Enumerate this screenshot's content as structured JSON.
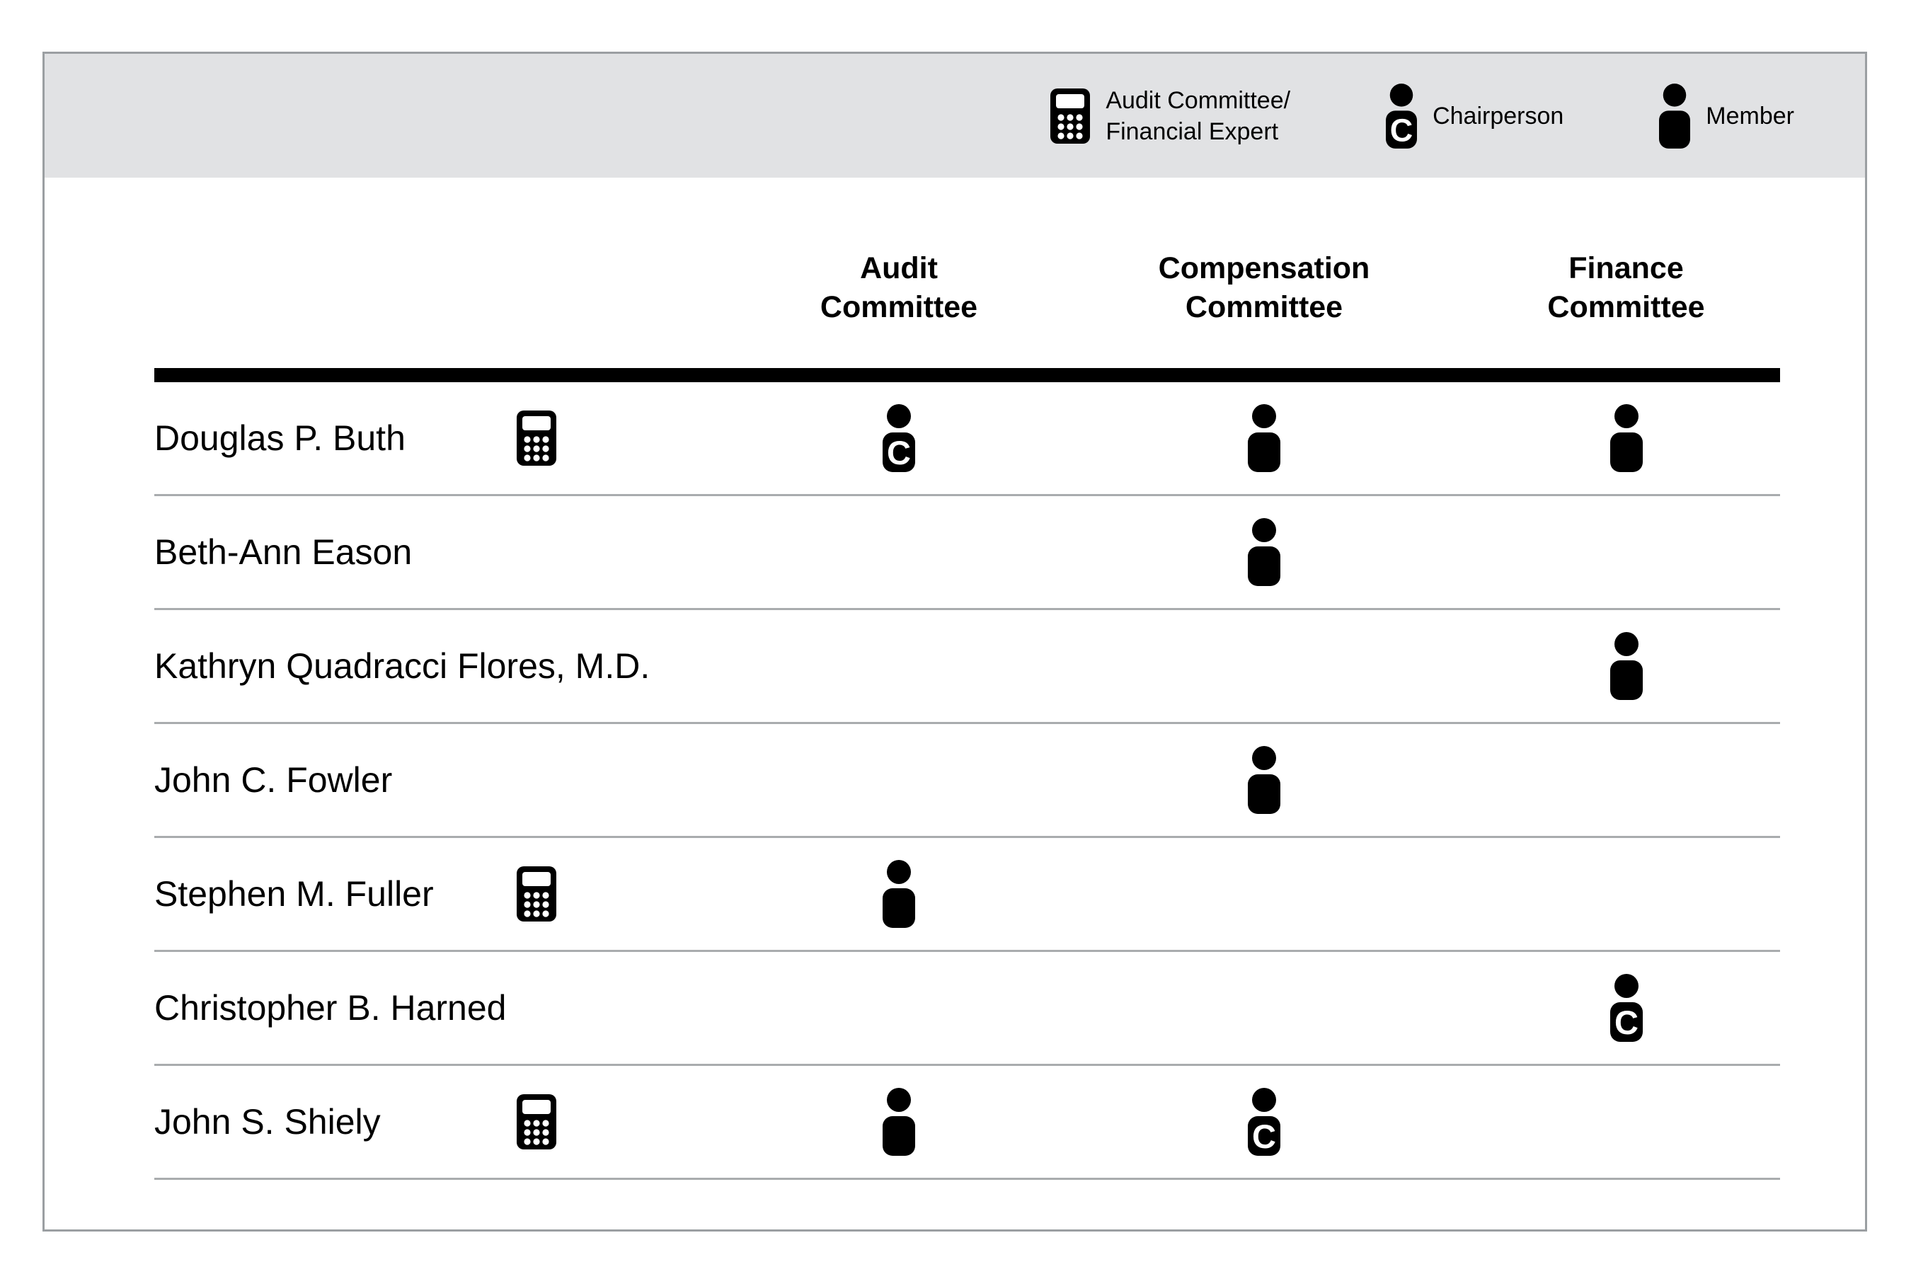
{
  "colors": {
    "band_bg": "#e1e2e4",
    "panel_border": "#9b9fa2",
    "row_divider": "#a9acae",
    "header_rule": "#000000",
    "icon": "#000000",
    "text": "#000000"
  },
  "legend": {
    "financial_expert": {
      "icon": "calculator-icon",
      "label_line1": "Audit Committee/",
      "label_line2": "Financial Expert"
    },
    "chairperson": {
      "icon": "chairperson-icon",
      "label": "Chairperson"
    },
    "member": {
      "icon": "member-icon",
      "label": "Member"
    },
    "chair_badge_letter": "C"
  },
  "table": {
    "columns": [
      {
        "id": "audit",
        "line1": "Audit",
        "line2": "Committee"
      },
      {
        "id": "compensation",
        "line1": "Compensation",
        "line2": "Committee"
      },
      {
        "id": "finance",
        "line1": "Finance",
        "line2": "Committee"
      }
    ],
    "rows": [
      {
        "name": "Douglas P. Buth",
        "financial_expert": true,
        "audit": "chair",
        "compensation": "member",
        "finance": "member"
      },
      {
        "name": "Beth-Ann Eason",
        "financial_expert": false,
        "audit": null,
        "compensation": "member",
        "finance": null
      },
      {
        "name": "Kathryn Quadracci Flores, M.D.",
        "financial_expert": false,
        "audit": null,
        "compensation": null,
        "finance": "member"
      },
      {
        "name": "John C. Fowler",
        "financial_expert": false,
        "audit": null,
        "compensation": "member",
        "finance": null
      },
      {
        "name": "Stephen M. Fuller",
        "financial_expert": true,
        "audit": "member",
        "compensation": null,
        "finance": null
      },
      {
        "name": "Christopher B. Harned",
        "financial_expert": false,
        "audit": null,
        "compensation": null,
        "finance": "chair"
      },
      {
        "name": "John S. Shiely",
        "financial_expert": true,
        "audit": "member",
        "compensation": "chair",
        "finance": null
      }
    ]
  }
}
